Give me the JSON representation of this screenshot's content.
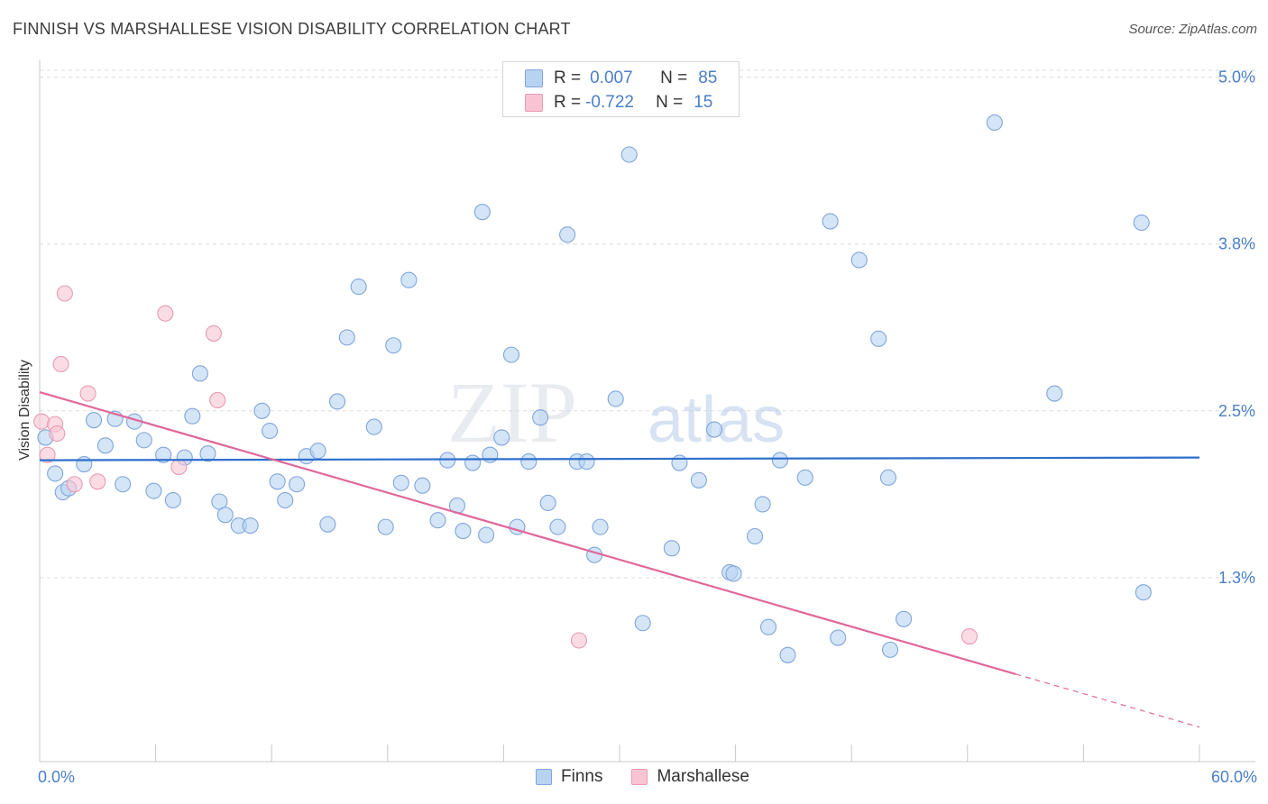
{
  "header": {
    "title": "FINNISH VS MARSHALLESE VISION DISABILITY CORRELATION CHART",
    "source": "Source: ZipAtlas.com"
  },
  "watermark": {
    "part1": "ZIP",
    "part2": "atlas"
  },
  "legend_box": {
    "rows": [
      {
        "r_label": "R =",
        "r_value": "0.007",
        "n_label": "N =",
        "n_value": "85"
      },
      {
        "r_label": "R =",
        "r_value": "-0.722",
        "n_label": "N =",
        "n_value": "15"
      }
    ]
  },
  "bottom_legend": {
    "finns": "Finns",
    "marshallese": "Marshallese"
  },
  "colors": {
    "finns_fill": "#b8d3f2",
    "finns_stroke": "#7fa6dc",
    "finns_line": "#2d6fcc",
    "marsh_fill": "#f8c4d3",
    "marsh_stroke": "#e79bb2",
    "marsh_line": "#e0679a",
    "tick_label": "#4a7fc8",
    "grid": "#dcdcdc"
  },
  "chart_data": {
    "type": "scatter",
    "title": "FINNISH VS MARSHALLESE VISION DISABILITY CORRELATION CHART",
    "xlabel": "",
    "ylabel": "Vision Disability",
    "xlim": [
      0,
      60
    ],
    "ylim": [
      0,
      5.2
    ],
    "x_tick_labels": [
      "0.0%",
      "60.0%"
    ],
    "y_ticks": [
      {
        "value": 1.25,
        "label": "1.3%"
      },
      {
        "value": 2.5,
        "label": "2.5%"
      },
      {
        "value": 3.75,
        "label": "3.8%"
      },
      {
        "value": 5.0,
        "label": "5.0%"
      }
    ],
    "series": [
      {
        "name": "Finns",
        "r": 0.007,
        "n": 85,
        "trend": {
          "x": [
            0,
            60
          ],
          "y": [
            2.13,
            2.15
          ],
          "dashed_from": null
        },
        "points": [
          [
            0.3,
            2.3
          ],
          [
            0.8,
            2.03
          ],
          [
            1.2,
            1.89
          ],
          [
            1.5,
            1.92
          ],
          [
            2.3,
            2.1
          ],
          [
            2.8,
            2.43
          ],
          [
            3.4,
            2.24
          ],
          [
            3.9,
            2.44
          ],
          [
            4.3,
            1.95
          ],
          [
            4.9,
            2.42
          ],
          [
            5.4,
            2.28
          ],
          [
            5.9,
            1.9
          ],
          [
            6.4,
            2.17
          ],
          [
            6.9,
            1.83
          ],
          [
            7.5,
            2.15
          ],
          [
            7.9,
            2.46
          ],
          [
            8.3,
            2.78
          ],
          [
            8.7,
            2.18
          ],
          [
            9.3,
            1.82
          ],
          [
            9.6,
            1.72
          ],
          [
            10.3,
            1.64
          ],
          [
            10.9,
            1.64
          ],
          [
            11.5,
            2.5
          ],
          [
            11.9,
            2.35
          ],
          [
            12.3,
            1.97
          ],
          [
            12.7,
            1.83
          ],
          [
            13.3,
            1.95
          ],
          [
            13.8,
            2.16
          ],
          [
            14.4,
            2.2
          ],
          [
            14.9,
            1.65
          ],
          [
            15.4,
            2.57
          ],
          [
            15.9,
            3.05
          ],
          [
            16.5,
            3.43
          ],
          [
            17.3,
            2.38
          ],
          [
            17.9,
            1.63
          ],
          [
            18.3,
            2.99
          ],
          [
            18.7,
            1.96
          ],
          [
            19.1,
            3.48
          ],
          [
            19.8,
            1.94
          ],
          [
            20.6,
            1.68
          ],
          [
            21.1,
            2.13
          ],
          [
            21.6,
            1.79
          ],
          [
            21.9,
            1.6
          ],
          [
            22.4,
            2.11
          ],
          [
            22.9,
            3.99
          ],
          [
            23.1,
            1.57
          ],
          [
            23.3,
            2.17
          ],
          [
            23.9,
            2.3
          ],
          [
            24.4,
            2.92
          ],
          [
            24.7,
            1.63
          ],
          [
            25.3,
            2.12
          ],
          [
            25.9,
            2.45
          ],
          [
            26.3,
            1.81
          ],
          [
            26.8,
            1.63
          ],
          [
            27.3,
            3.82
          ],
          [
            27.8,
            2.12
          ],
          [
            28.3,
            2.12
          ],
          [
            28.7,
            1.42
          ],
          [
            29.0,
            1.63
          ],
          [
            29.8,
            2.59
          ],
          [
            30.5,
            4.42
          ],
          [
            31.2,
            0.91
          ],
          [
            32.7,
            1.47
          ],
          [
            33.1,
            2.11
          ],
          [
            34.1,
            1.98
          ],
          [
            34.9,
            2.36
          ],
          [
            35.7,
            1.29
          ],
          [
            35.9,
            1.28
          ],
          [
            37.0,
            1.56
          ],
          [
            37.4,
            1.8
          ],
          [
            37.7,
            0.88
          ],
          [
            38.3,
            2.13
          ],
          [
            38.7,
            0.67
          ],
          [
            39.6,
            2.0
          ],
          [
            40.9,
            3.92
          ],
          [
            41.3,
            0.8
          ],
          [
            42.4,
            3.63
          ],
          [
            43.4,
            3.04
          ],
          [
            43.9,
            2.0
          ],
          [
            44.0,
            0.71
          ],
          [
            44.7,
            0.94
          ],
          [
            49.4,
            4.66
          ],
          [
            52.5,
            2.63
          ],
          [
            57.0,
            3.91
          ],
          [
            57.1,
            1.14
          ]
        ]
      },
      {
        "name": "Marshallese",
        "r": -0.722,
        "n": 15,
        "trend": {
          "x": [
            0,
            60
          ],
          "y": [
            2.64,
            0.13
          ],
          "dashed_from": 50.5
        },
        "points": [
          [
            0.1,
            2.42
          ],
          [
            0.4,
            2.17
          ],
          [
            0.8,
            2.4
          ],
          [
            0.9,
            2.33
          ],
          [
            1.1,
            2.85
          ],
          [
            1.3,
            3.38
          ],
          [
            1.8,
            1.95
          ],
          [
            2.5,
            2.63
          ],
          [
            3.0,
            1.97
          ],
          [
            6.5,
            3.23
          ],
          [
            7.2,
            2.08
          ],
          [
            9.0,
            3.08
          ],
          [
            9.2,
            2.58
          ],
          [
            27.9,
            0.78
          ],
          [
            48.1,
            0.81
          ]
        ]
      }
    ]
  }
}
